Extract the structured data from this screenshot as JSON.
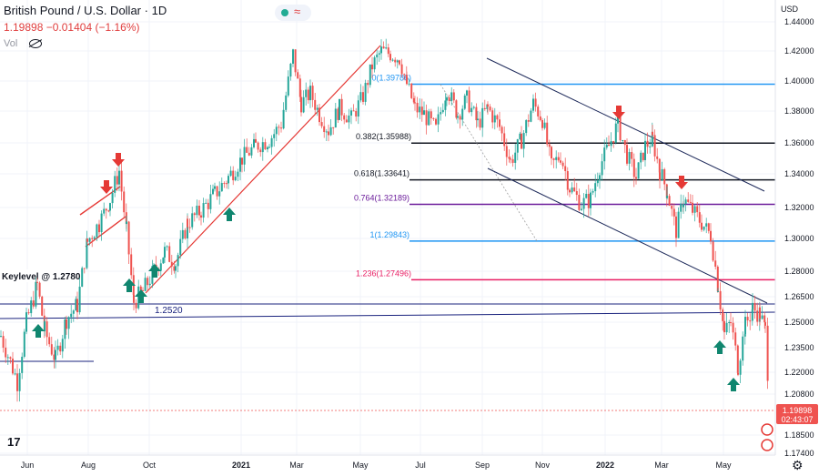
{
  "header": {
    "symbol": "British Pound / U.S. Dollar",
    "interval": "1D",
    "price": "1.19898",
    "change": "−0.01404",
    "change_pct": "(−1.16%)",
    "vol_label": "Vol"
  },
  "colors": {
    "up": "#26a69a",
    "down": "#ef5350",
    "fib_blue": "#2196f3",
    "fib_black": "#131722",
    "fib_purple": "#6a1b9a",
    "fib_red": "#e91e63",
    "channel": "#1e2a5a",
    "trend_red": "#e53935",
    "arrow_up": "#10866f",
    "arrow_down": "#e53935",
    "support": "#1a237e"
  },
  "chart_data": {
    "type": "candlestick",
    "title": "British Pound / U.S. Dollar",
    "interval": "1D",
    "price_axis_label": "USD",
    "ylim": [
      1.17,
      1.445
    ],
    "y_ticks": [
      "1.44000",
      "1.42000",
      "1.40000",
      "1.38000",
      "1.36000",
      "1.34000",
      "1.32000",
      "1.30000",
      "1.28000",
      "1.26500",
      "1.25000",
      "1.23500",
      "1.22000",
      "1.20800",
      "1.18500",
      "1.17400"
    ],
    "x_ticks": [
      "Jun",
      "Aug",
      "Oct",
      "2021",
      "Mar",
      "May",
      "Jul",
      "Sep",
      "Nov",
      "2022",
      "Mar",
      "May"
    ],
    "last_price": "1.19898",
    "countdown": "02:43:07",
    "path_points": [
      [
        0,
        1.242
      ],
      [
        18,
        1.215
      ],
      [
        28,
        1.25
      ],
      [
        40,
        1.272
      ],
      [
        48,
        1.245
      ],
      [
        60,
        1.228
      ],
      [
        72,
        1.252
      ],
      [
        84,
        1.26
      ],
      [
        95,
        1.298
      ],
      [
        108,
        1.31
      ],
      [
        120,
        1.325
      ],
      [
        130,
        1.342
      ],
      [
        138,
        1.305
      ],
      [
        146,
        1.262
      ],
      [
        156,
        1.268
      ],
      [
        168,
        1.28
      ],
      [
        180,
        1.292
      ],
      [
        192,
        1.285
      ],
      [
        205,
        1.31
      ],
      [
        220,
        1.318
      ],
      [
        235,
        1.328
      ],
      [
        250,
        1.338
      ],
      [
        265,
        1.35
      ],
      [
        280,
        1.358
      ],
      [
        295,
        1.362
      ],
      [
        308,
        1.372
      ],
      [
        321,
        1.418
      ],
      [
        330,
        1.385
      ],
      [
        340,
        1.392
      ],
      [
        350,
        1.378
      ],
      [
        360,
        1.368
      ],
      [
        372,
        1.382
      ],
      [
        385,
        1.375
      ],
      [
        398,
        1.39
      ],
      [
        408,
        1.41
      ],
      [
        418,
        1.42
      ],
      [
        428,
        1.418
      ],
      [
        438,
        1.415
      ],
      [
        446,
        1.398
      ],
      [
        455,
        1.382
      ],
      [
        465,
        1.378
      ],
      [
        478,
        1.368
      ],
      [
        490,
        1.395
      ],
      [
        502,
        1.378
      ],
      [
        512,
        1.388
      ],
      [
        524,
        1.372
      ],
      [
        535,
        1.382
      ],
      [
        548,
        1.37
      ],
      [
        560,
        1.348
      ],
      [
        572,
        1.362
      ],
      [
        585,
        1.385
      ],
      [
        595,
        1.375
      ],
      [
        605,
        1.345
      ],
      [
        615,
        1.352
      ],
      [
        625,
        1.332
      ],
      [
        638,
        1.322
      ],
      [
        648,
        1.325
      ],
      [
        658,
        1.345
      ],
      [
        668,
        1.358
      ],
      [
        678,
        1.372
      ],
      [
        688,
        1.352
      ],
      [
        698,
        1.338
      ],
      [
        708,
        1.358
      ],
      [
        716,
        1.362
      ],
      [
        724,
        1.342
      ],
      [
        732,
        1.33
      ],
      [
        742,
        1.305
      ],
      [
        750,
        1.325
      ],
      [
        760,
        1.318
      ],
      [
        770,
        1.31
      ],
      [
        780,
        1.302
      ],
      [
        788,
        1.272
      ],
      [
        795,
        1.243
      ],
      [
        802,
        1.25
      ],
      [
        810,
        1.224
      ],
      [
        818,
        1.248
      ],
      [
        826,
        1.258
      ],
      [
        834,
        1.255
      ],
      [
        840,
        1.245
      ],
      [
        845,
        1.199
      ]
    ],
    "fib_levels": [
      {
        "label": "0(1.39786)",
        "value": 1.39786,
        "color": "#2196f3"
      },
      {
        "label": "0.382(1.35988)",
        "value": 1.35988,
        "color": "#131722"
      },
      {
        "label": "0.618(1.33641)",
        "value": 1.33641,
        "color": "#131722"
      },
      {
        "label": "0.764(1.32189)",
        "value": 1.32189,
        "color": "#6a1b9a"
      },
      {
        "label": "1(1.29843)",
        "value": 1.29843,
        "color": "#2196f3"
      },
      {
        "label": "1.236(1.27496)",
        "value": 1.27496,
        "color": "#e91e63"
      }
    ],
    "annotations": {
      "keylevel": "Keylevel @ 1.2780",
      "support": "1.2520"
    }
  }
}
